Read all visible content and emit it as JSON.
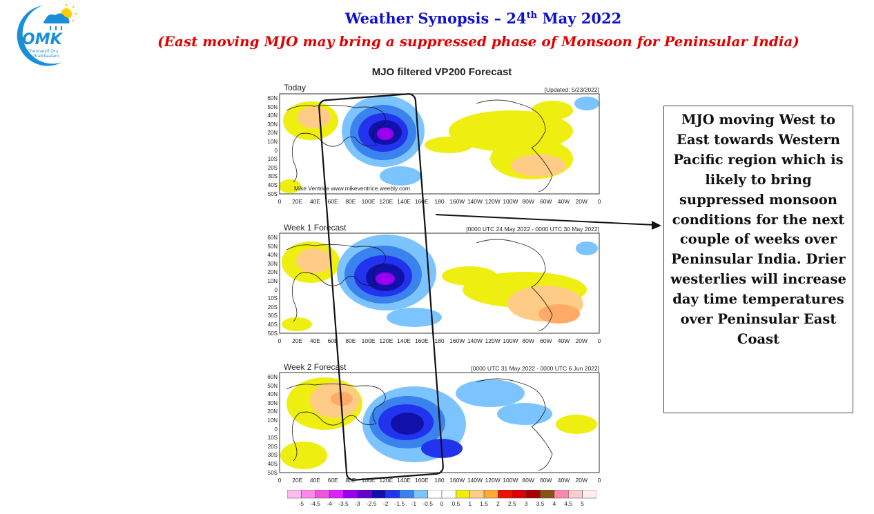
{
  "header": {
    "title_pre": "Weather Synopsis – 24",
    "title_sup": "th",
    "title_post": " May 2022",
    "subtitle": "(East moving MJO may bring a suppressed phase of Monsoon for Peninsular India)"
  },
  "logo": {
    "text": "OMK",
    "line1": "Chennaiyil Oru",
    "line2": "Mazhaikkaalam",
    "color": "#1a8fd8"
  },
  "figure": {
    "title": "MJO filtered VP200 Forecast",
    "credit": "Mike Ventrice www.mikeventrice.weebly.com",
    "panels": [
      {
        "label": "Today",
        "meta": "[Updated: 5/23/2022]"
      },
      {
        "label": "Week 1 Forecast",
        "meta": "[0000 UTC 24 May 2022 - 0000 UTC 30 May 2022]"
      },
      {
        "label": "Week 2 Forecast",
        "meta": "[0000 UTC 31 May 2022 - 0000 UTC 6 Jun 2022]"
      }
    ],
    "lat_labels": [
      "60N",
      "50N",
      "40N",
      "30N",
      "20N",
      "10N",
      "0",
      "10S",
      "20S",
      "30S",
      "40S",
      "50S"
    ],
    "lon_labels": [
      "0",
      "20E",
      "40E",
      "60E",
      "80E",
      "100E",
      "120E",
      "140E",
      "160E",
      "180",
      "160W",
      "140W",
      "120W",
      "100W",
      "80W",
      "60W",
      "40W",
      "20W",
      "0"
    ],
    "colorbar": {
      "labels": [
        "-5",
        "-4.5",
        "-4",
        "-3.5",
        "-3",
        "-2.5",
        "-2",
        "-1.5",
        "-1",
        "-0.5",
        "0",
        "0.5",
        "1",
        "1.5",
        "2",
        "2.5",
        "3",
        "3.5",
        "4",
        "4.5",
        "5"
      ],
      "colors": [
        "#ffbbee",
        "#ff88ee",
        "#ee55dd",
        "#dd22ff",
        "#9900ee",
        "#6600cc",
        "#1111aa",
        "#2233ee",
        "#3a82ee",
        "#7cc4ff",
        "#ffffff",
        "#ffffff",
        "#eeee11",
        "#ffcc88",
        "#ffaa33",
        "#ee1100",
        "#dd0000",
        "#aa0000",
        "#885511",
        "#ff88aa",
        "#ffcccc",
        "#ffeeee"
      ]
    }
  },
  "callout": {
    "text": "MJO moving West to East towards Western Pacific region which is likely to bring suppressed monsoon conditions for the next couple of weeks over Peninsular India. Drier westerlies will increase day time temperatures over Peninsular East Coast"
  }
}
